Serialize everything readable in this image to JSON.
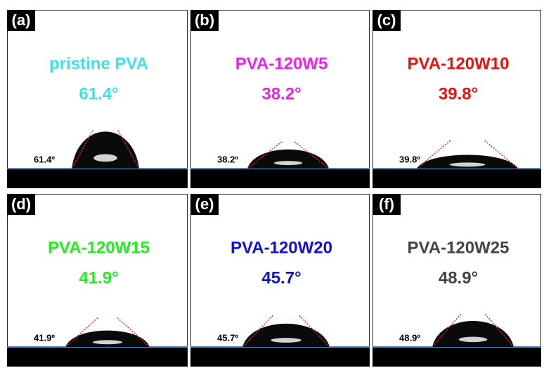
{
  "panels": [
    {
      "tag": "(a)",
      "name": "pristine PVA",
      "angle": "61.4°",
      "image_label": "61.4º",
      "color": "#3fe3e3"
    },
    {
      "tag": "(b)",
      "name": "PVA-120W5",
      "angle": "38.2°",
      "image_label": "38.2º",
      "color": "#ee22ee"
    },
    {
      "tag": "(c)",
      "name": "PVA-120W10",
      "angle": "39.8°",
      "image_label": "39.8º",
      "color": "#ee1111"
    },
    {
      "tag": "(d)",
      "name": "PVA-120W15",
      "angle": "41.9°",
      "image_label": "41.9º",
      "color": "#22ee22"
    },
    {
      "tag": "(e)",
      "name": "PVA-120W20",
      "angle": "45.7°",
      "image_label": "45.7º",
      "color": "#1111dd"
    },
    {
      "tag": "(f)",
      "name": "PVA-120W25",
      "angle": "48.9°",
      "image_label": "48.9º",
      "color": "#444444"
    }
  ]
}
